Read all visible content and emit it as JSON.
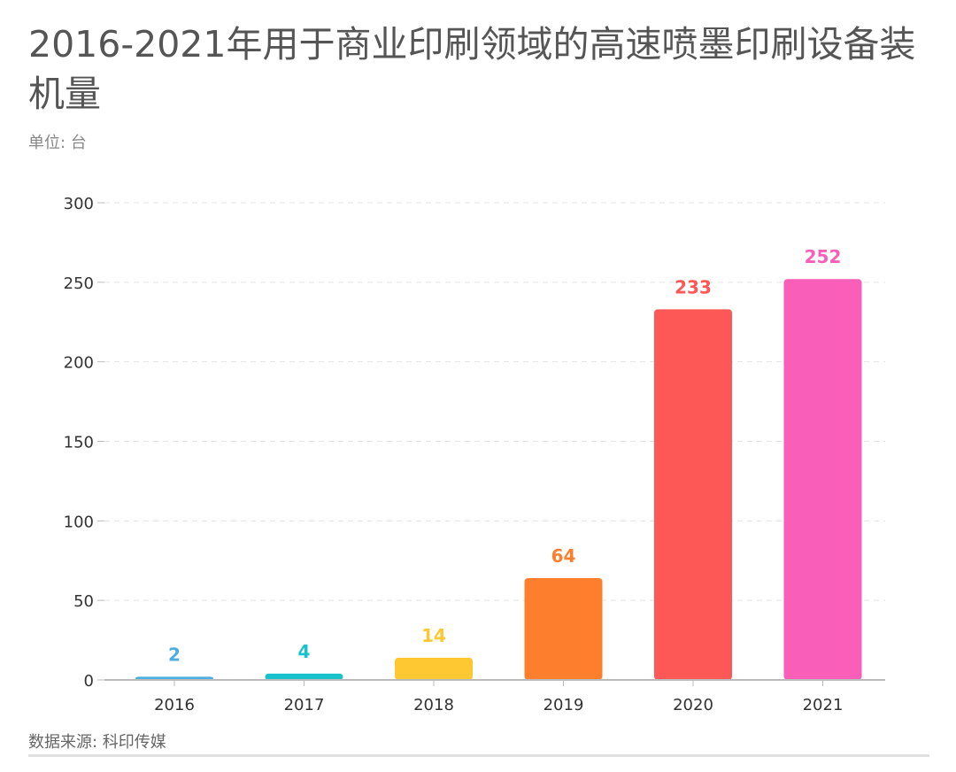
{
  "chart_data": {
    "type": "bar",
    "title": "2016-2021年用于商业印刷领域的高速喷墨印刷设备装机量",
    "subtitle": "单位: 台",
    "source": "数据来源: 科印传媒",
    "categories": [
      "2016",
      "2017",
      "2018",
      "2019",
      "2020",
      "2021"
    ],
    "values": [
      2,
      4,
      14,
      64,
      233,
      252
    ],
    "colors": [
      "#4aaee2",
      "#17c2cc",
      "#fdc832",
      "#fd7f2e",
      "#fd5856",
      "#f95fb8"
    ],
    "ylim": [
      0,
      300
    ],
    "yticks": [
      0,
      50,
      100,
      150,
      200,
      250,
      300
    ],
    "grid": true,
    "data_labels": true
  }
}
